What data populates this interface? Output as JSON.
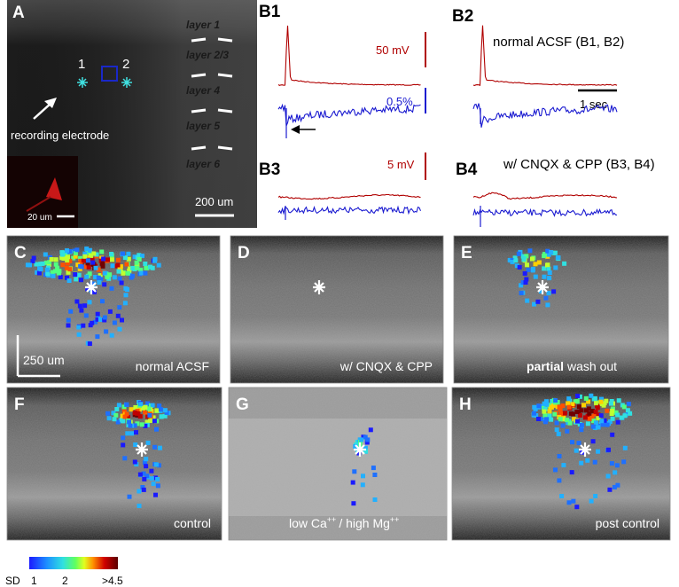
{
  "panel_a": {
    "label": "A",
    "layers": [
      "layer 1",
      "layer 2/3",
      "layer 4",
      "layer 5",
      "layer 6"
    ],
    "site_1": "1",
    "site_2": "2",
    "electrode": "recording electrode",
    "inset_scale": "20 um",
    "scale": "200 um"
  },
  "panel_b": {
    "b1": "B1",
    "b2": "B2",
    "b3": "B3",
    "b4": "B4",
    "scale_50mv": "50 mV",
    "scale_pct": "0.5%",
    "condition_1": "normal ACSF (B1, B2)",
    "time_scale": "1 sec",
    "scale_5mv": "5 mV",
    "condition_2": "w/ CNQX & CPP (B3, B4)"
  },
  "images": [
    {
      "label": "C",
      "caption": "normal ACSF",
      "scale": "250 um"
    },
    {
      "label": "D",
      "caption": "w/ CNQX & CPP"
    },
    {
      "label": "E",
      "caption_bold": "partial",
      "caption": "wash out"
    },
    {
      "label": "F",
      "caption": "control"
    },
    {
      "label": "G",
      "caption_parts": [
        "low Ca",
        "++",
        "/ high Mg",
        "++"
      ]
    },
    {
      "label": "H",
      "caption": "post control"
    }
  ],
  "colorbar": {
    "title": "SD",
    "ticks": [
      "1",
      "2",
      ">4.5"
    ]
  }
}
